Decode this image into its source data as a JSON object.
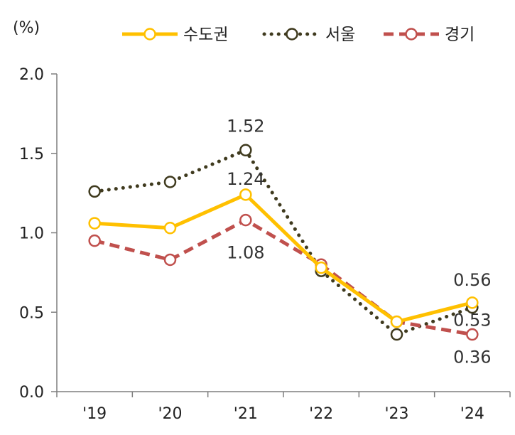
{
  "chart_data": {
    "type": "line",
    "unit_label": "(%)",
    "categories": [
      "'19",
      "'20",
      "'21",
      "'22",
      "'23",
      "'24"
    ],
    "ylim": [
      0,
      2.0
    ],
    "yticks": [
      "0.0",
      "0.5",
      "1.0",
      "1.5",
      "2.0"
    ],
    "grid": false,
    "legend_position": "top-right",
    "series": [
      {
        "name": "수도권",
        "values": [
          1.06,
          1.03,
          1.24,
          0.78,
          0.44,
          0.56
        ],
        "color": "#FFC000",
        "line_style": "solid",
        "labels": [
          null,
          null,
          "1.24",
          null,
          null,
          "0.56"
        ]
      },
      {
        "name": "서울",
        "values": [
          1.26,
          1.32,
          1.52,
          0.76,
          0.36,
          0.53
        ],
        "color": "#3F3A1E",
        "line_style": "dotted",
        "labels": [
          null,
          null,
          "1.52",
          null,
          null,
          "0.53"
        ]
      },
      {
        "name": "경기",
        "values": [
          0.95,
          0.83,
          1.08,
          0.8,
          0.44,
          0.36
        ],
        "color": "#C0504D",
        "line_style": "dashed",
        "labels": [
          null,
          null,
          "1.08",
          null,
          null,
          "0.36"
        ]
      }
    ]
  }
}
